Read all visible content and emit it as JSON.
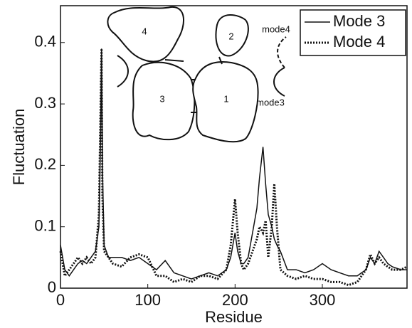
{
  "chart_data": {
    "type": "line",
    "x_label": "Residue",
    "y_label": "Fluctuation",
    "xlim": [
      0,
      397
    ],
    "ylim": [
      0,
      0.46
    ],
    "xticks": [
      0,
      100,
      200,
      300
    ],
    "yticks": [
      0,
      0.1,
      0.2,
      0.3,
      0.4
    ],
    "legend": "upper right",
    "annotations": [
      "4",
      "2",
      "3",
      "1",
      "mode4",
      "mode3"
    ],
    "x": [
      0,
      5,
      10,
      15,
      20,
      25,
      30,
      35,
      40,
      44,
      46,
      47,
      48,
      50,
      55,
      60,
      70,
      80,
      90,
      100,
      110,
      120,
      130,
      140,
      150,
      160,
      170,
      180,
      190,
      195,
      200,
      203,
      207,
      210,
      215,
      220,
      225,
      228,
      232,
      235,
      238,
      242,
      245,
      248,
      252,
      260,
      270,
      280,
      290,
      300,
      310,
      320,
      330,
      340,
      350,
      355,
      360,
      365,
      370,
      375,
      380,
      390,
      397
    ],
    "series": [
      {
        "name": "Mode 3",
        "color": "#111111",
        "style": "solid",
        "values": [
          0.07,
          0.03,
          0.02,
          0.03,
          0.04,
          0.045,
          0.04,
          0.05,
          0.06,
          0.1,
          0.25,
          0.39,
          0.2,
          0.07,
          0.05,
          0.05,
          0.05,
          0.045,
          0.05,
          0.04,
          0.03,
          0.045,
          0.025,
          0.02,
          0.015,
          0.02,
          0.025,
          0.02,
          0.03,
          0.05,
          0.09,
          0.06,
          0.04,
          0.04,
          0.05,
          0.09,
          0.13,
          0.18,
          0.23,
          0.17,
          0.12,
          0.1,
          0.08,
          0.07,
          0.06,
          0.03,
          0.03,
          0.025,
          0.03,
          0.04,
          0.03,
          0.025,
          0.02,
          0.02,
          0.03,
          0.05,
          0.04,
          0.06,
          0.05,
          0.04,
          0.035,
          0.03,
          0.03
        ]
      },
      {
        "name": "Mode 4",
        "color": "#111111",
        "style": "dotted",
        "values": [
          0.06,
          0.02,
          0.03,
          0.04,
          0.05,
          0.04,
          0.05,
          0.04,
          0.05,
          0.12,
          0.3,
          0.39,
          0.15,
          0.06,
          0.05,
          0.04,
          0.035,
          0.05,
          0.055,
          0.05,
          0.02,
          0.02,
          0.01,
          0.015,
          0.01,
          0.02,
          0.02,
          0.015,
          0.03,
          0.07,
          0.145,
          0.09,
          0.04,
          0.03,
          0.04,
          0.06,
          0.08,
          0.1,
          0.09,
          0.11,
          0.05,
          0.1,
          0.17,
          0.1,
          0.03,
          0.02,
          0.015,
          0.02,
          0.015,
          0.015,
          0.01,
          0.01,
          0.005,
          0.01,
          0.03,
          0.055,
          0.04,
          0.05,
          0.04,
          0.035,
          0.03,
          0.03,
          0.035
        ]
      }
    ]
  }
}
